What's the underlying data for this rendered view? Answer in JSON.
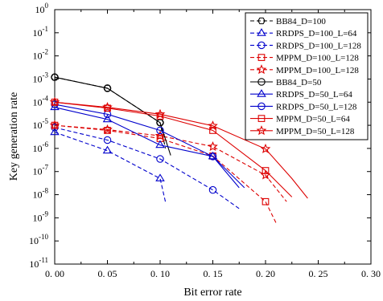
{
  "chart_data": {
    "type": "line",
    "xlabel": "Bit error rate",
    "ylabel": "Key generation rate",
    "xlim": [
      0,
      0.3
    ],
    "ylim_log10": [
      -11,
      0
    ],
    "y_scale": "log",
    "grid": false,
    "legend_placement": "top-right",
    "x_ticks": [
      "0. 00",
      "0. 05",
      "0. 10",
      "0. 15",
      "0. 20",
      "0. 25",
      "0. 30"
    ],
    "x_tick_values": [
      0,
      0.05,
      0.1,
      0.15,
      0.2,
      0.25,
      0.3
    ],
    "y_ticks": [
      {
        "base": "10",
        "exp": "0"
      },
      {
        "base": "10",
        "exp": "-1"
      },
      {
        "base": "10",
        "exp": "-2"
      },
      {
        "base": "10",
        "exp": "-3"
      },
      {
        "base": "10",
        "exp": "-4"
      },
      {
        "base": "10",
        "exp": "-5"
      },
      {
        "base": "10",
        "exp": "-6"
      },
      {
        "base": "10",
        "exp": "-7"
      },
      {
        "base": "10",
        "exp": "-8"
      },
      {
        "base": "10",
        "exp": "-9"
      },
      {
        "base": "10",
        "exp": "-10"
      },
      {
        "base": "10",
        "exp": "-11"
      }
    ],
    "series": [
      {
        "name": "BB84_D=100",
        "color": "#000000",
        "dash": true,
        "marker": "hexagon",
        "x": [
          0,
          0.05,
          0.1,
          0.105
        ],
        "y": [
          0.0012,
          0.0004,
          1.3e-05,
          1e-06
        ],
        "markers_at": [
          0,
          0.05,
          0.1
        ]
      },
      {
        "name": "RRDPS_D=100_L=64",
        "color": "#0000cc",
        "dash": true,
        "marker": "triangle",
        "x": [
          0,
          0.05,
          0.1,
          0.105
        ],
        "y": [
          5e-06,
          8e-07,
          5e-08,
          5e-09
        ],
        "markers_at": [
          0,
          0.05,
          0.1
        ]
      },
      {
        "name": "RRDPS_D=100_L=128",
        "color": "#0000cc",
        "dash": true,
        "marker": "circle",
        "x": [
          0,
          0.05,
          0.1,
          0.15,
          0.175
        ],
        "y": [
          8e-06,
          2.3e-06,
          3.5e-07,
          1.6e-08,
          2.5e-09
        ],
        "markers_at": [
          0,
          0.05,
          0.1,
          0.15
        ]
      },
      {
        "name": "MPPM_D=100_L=128",
        "color": "#dd0000",
        "dash": true,
        "marker": "square",
        "x": [
          0,
          0.05,
          0.1,
          0.15,
          0.2,
          0.21
        ],
        "y": [
          1e-05,
          6e-06,
          2.7e-06,
          4.7e-07,
          5e-09,
          6e-10
        ],
        "markers_at": [
          0,
          0.05,
          0.1,
          0.15,
          0.2
        ]
      },
      {
        "name": "MPPM_D=100_L=128",
        "color": "#dd0000",
        "dash": true,
        "marker": "star",
        "x": [
          0,
          0.05,
          0.1,
          0.15,
          0.2,
          0.22
        ],
        "y": [
          1e-05,
          6.5e-06,
          3.5e-06,
          1.2e-06,
          7e-08,
          5e-09
        ],
        "markers_at": [
          0,
          0.05,
          0.1,
          0.15,
          0.2
        ]
      },
      {
        "name": "BB84_D=50",
        "color": "#000000",
        "dash": false,
        "marker": "circle",
        "x": [
          0,
          0.05,
          0.1,
          0.11
        ],
        "y": [
          0.0012,
          0.0004,
          1.3e-05,
          5e-07
        ],
        "markers_at": [
          0,
          0.05,
          0.1
        ]
      },
      {
        "name": "RRDPS_D=50_L=64",
        "color": "#0000cc",
        "dash": false,
        "marker": "triangle",
        "x": [
          0,
          0.05,
          0.1,
          0.15,
          0.175
        ],
        "y": [
          6e-05,
          1.8e-05,
          1.4e-06,
          4.5e-07,
          2e-08
        ],
        "markers_at": [
          0,
          0.05,
          0.1,
          0.15
        ]
      },
      {
        "name": "RRDPS_D=50_L=128",
        "color": "#0000cc",
        "dash": false,
        "marker": "circle",
        "x": [
          0,
          0.05,
          0.1,
          0.15,
          0.18
        ],
        "y": [
          8e-05,
          3e-05,
          6e-06,
          4.5e-07,
          2e-08
        ],
        "markers_at": [
          0,
          0.05,
          0.1,
          0.15
        ]
      },
      {
        "name": "MPPM_D=50_L=64",
        "color": "#dd0000",
        "dash": false,
        "marker": "square",
        "x": [
          0,
          0.05,
          0.1,
          0.15,
          0.2,
          0.225
        ],
        "y": [
          0.0001,
          5.5e-05,
          2.5e-05,
          6e-06,
          1.1e-07,
          8e-09
        ],
        "markers_at": [
          0,
          0.05,
          0.1,
          0.15,
          0.2
        ]
      },
      {
        "name": "MPPM_D=50_L=128",
        "color": "#dd0000",
        "dash": false,
        "marker": "star",
        "x": [
          0,
          0.05,
          0.1,
          0.15,
          0.2,
          0.225,
          0.24
        ],
        "y": [
          0.0001,
          6e-05,
          3e-05,
          9.5e-06,
          9.5e-07,
          5e-08,
          7e-09
        ],
        "markers_at": [
          0,
          0.05,
          0.1,
          0.15,
          0.2
        ]
      }
    ]
  }
}
